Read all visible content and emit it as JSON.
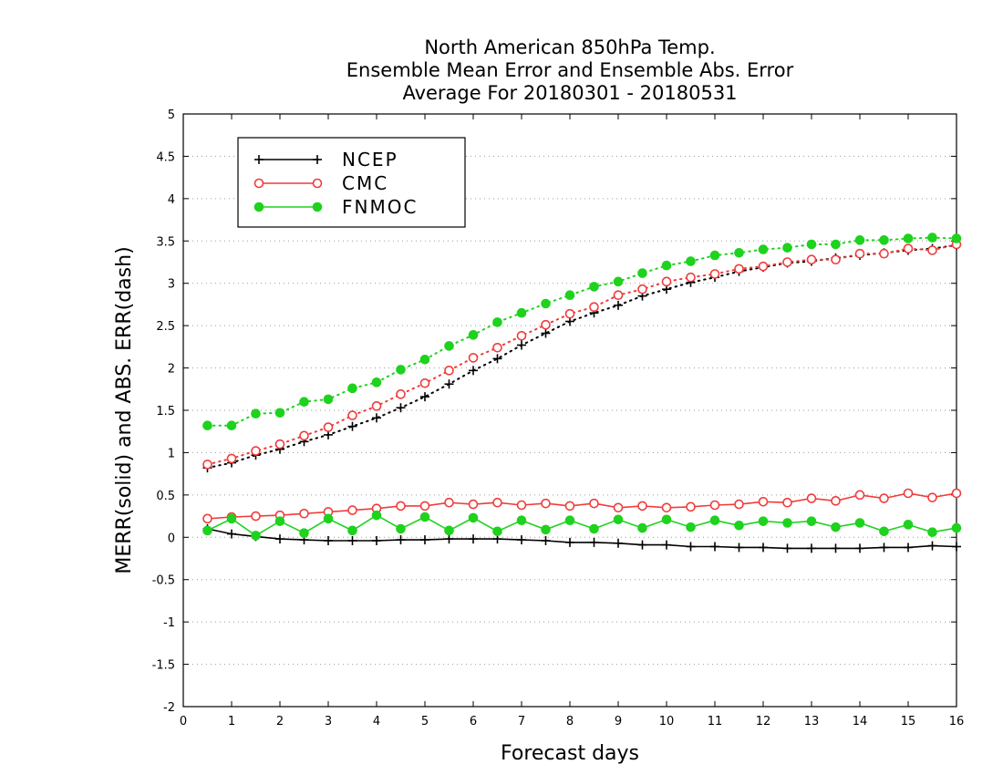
{
  "chart_data": {
    "type": "line",
    "title": [
      "North American 850hPa Temp.",
      "Ensemble Mean Error and Ensemble Abs. Error",
      "Average For 20180301 - 20180531"
    ],
    "xlabel": "Forecast days",
    "ylabel": "MERR(solid) and ABS. ERR(dash)",
    "xlim": [
      0,
      16
    ],
    "ylim": [
      -2,
      5
    ],
    "xticks": [
      0,
      1,
      2,
      3,
      4,
      5,
      6,
      7,
      8,
      9,
      10,
      11,
      12,
      13,
      14,
      15,
      16
    ],
    "yticks": [
      -2,
      -1.5,
      -1,
      -0.5,
      0,
      0.5,
      1,
      1.5,
      2,
      2.5,
      3,
      3.5,
      4,
      4.5,
      5
    ],
    "ytick_labels": [
      "-2",
      "-1.5",
      "-1",
      "-0.5",
      "0",
      "0.5",
      "1",
      "1.5",
      "2",
      "2.5",
      "3",
      "3.5",
      "4",
      "4.5",
      "5"
    ],
    "grid": "horizontal dotted",
    "legend_position": "top-left",
    "x": [
      0.5,
      1,
      1.5,
      2,
      2.5,
      3,
      3.5,
      4,
      4.5,
      5,
      5.5,
      6,
      6.5,
      7,
      7.5,
      8,
      8.5,
      9,
      9.5,
      10,
      10.5,
      11,
      11.5,
      12,
      12.5,
      13,
      13.5,
      14,
      14.5,
      15,
      15.5,
      16
    ],
    "series": [
      {
        "name": "NCEP",
        "color": "#000000",
        "marker": "plus",
        "merr": [
          0.1,
          0.04,
          0.01,
          -0.02,
          -0.03,
          -0.04,
          -0.04,
          -0.04,
          -0.03,
          -0.03,
          -0.02,
          -0.02,
          -0.02,
          -0.03,
          -0.04,
          -0.06,
          -0.06,
          -0.07,
          -0.09,
          -0.09,
          -0.11,
          -0.11,
          -0.12,
          -0.12,
          -0.13,
          -0.13,
          -0.13,
          -0.13,
          -0.12,
          -0.12,
          -0.1,
          -0.11
        ],
        "abs_err": [
          0.82,
          0.88,
          0.97,
          1.04,
          1.13,
          1.21,
          1.31,
          1.41,
          1.53,
          1.66,
          1.81,
          1.97,
          2.11,
          2.27,
          2.41,
          2.55,
          2.65,
          2.74,
          2.85,
          2.93,
          3.01,
          3.07,
          3.14,
          3.19,
          3.24,
          3.26,
          3.3,
          3.33,
          3.36,
          3.39,
          3.41,
          3.45
        ]
      },
      {
        "name": "CMC",
        "color": "#f03c3c",
        "marker": "open-circle",
        "merr": [
          0.22,
          0.24,
          0.25,
          0.26,
          0.28,
          0.3,
          0.32,
          0.34,
          0.37,
          0.37,
          0.41,
          0.39,
          0.41,
          0.38,
          0.4,
          0.37,
          0.4,
          0.35,
          0.37,
          0.35,
          0.36,
          0.38,
          0.39,
          0.42,
          0.41,
          0.46,
          0.43,
          0.5,
          0.46,
          0.52,
          0.47,
          0.52
        ],
        "abs_err": [
          0.86,
          0.93,
          1.02,
          1.1,
          1.2,
          1.3,
          1.44,
          1.55,
          1.69,
          1.82,
          1.97,
          2.12,
          2.24,
          2.38,
          2.51,
          2.64,
          2.72,
          2.86,
          2.93,
          3.02,
          3.07,
          3.11,
          3.17,
          3.2,
          3.25,
          3.28,
          3.28,
          3.35,
          3.35,
          3.41,
          3.39,
          3.46
        ]
      },
      {
        "name": "FNMOC",
        "color": "#1ed21e",
        "marker": "filled-circle",
        "merr": [
          0.08,
          0.22,
          0.02,
          0.19,
          0.05,
          0.22,
          0.08,
          0.26,
          0.1,
          0.24,
          0.08,
          0.23,
          0.07,
          0.2,
          0.09,
          0.2,
          0.1,
          0.21,
          0.11,
          0.21,
          0.12,
          0.2,
          0.14,
          0.19,
          0.17,
          0.19,
          0.12,
          0.17,
          0.07,
          0.15,
          0.06,
          0.11
        ],
        "abs_err": [
          1.32,
          1.32,
          1.46,
          1.47,
          1.6,
          1.63,
          1.76,
          1.83,
          1.98,
          2.1,
          2.26,
          2.39,
          2.54,
          2.65,
          2.76,
          2.86,
          2.96,
          3.02,
          3.12,
          3.21,
          3.26,
          3.33,
          3.36,
          3.4,
          3.42,
          3.46,
          3.46,
          3.51,
          3.51,
          3.53,
          3.54,
          3.53
        ]
      }
    ]
  }
}
